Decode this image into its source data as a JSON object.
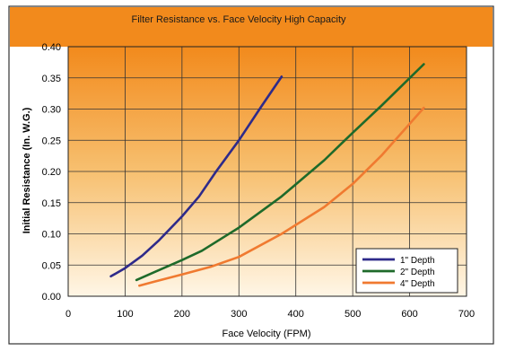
{
  "chart_data": {
    "type": "line",
    "title": "Filter Resistance vs. Face Velocity High Capacity",
    "xlabel": "Face Velocity (FPM)",
    "ylabel": "Initial Resistance (In. W.G.)",
    "xlim": [
      0,
      700
    ],
    "ylim": [
      0,
      0.4
    ],
    "x_ticks": [
      "0",
      "100",
      "200",
      "300",
      "400",
      "500",
      "600",
      "700"
    ],
    "y_ticks": [
      "0.00",
      "0.05",
      "0.10",
      "0.15",
      "0.20",
      "0.25",
      "0.30",
      "0.35",
      "0.40"
    ],
    "grid": true,
    "legend_position": "bottom-right",
    "series": [
      {
        "name": "1\" Depth",
        "color": "#2e2a8a",
        "x": [
          75,
          100,
          130,
          160,
          200,
          230,
          260,
          300,
          340,
          375
        ],
        "y": [
          0.032,
          0.045,
          0.065,
          0.09,
          0.128,
          0.16,
          0.2,
          0.25,
          0.305,
          0.352
        ]
      },
      {
        "name": "2\" Depth",
        "color": "#1e6a2a",
        "x": [
          120,
          150,
          200,
          235,
          300,
          375,
          450,
          500,
          550,
          625
        ],
        "y": [
          0.026,
          0.038,
          0.058,
          0.073,
          0.11,
          0.16,
          0.218,
          0.262,
          0.305,
          0.372
        ]
      },
      {
        "name": "4\" Depth",
        "color": "#f07a30",
        "x": [
          125,
          150,
          200,
          250,
          300,
          375,
          450,
          500,
          550,
          625
        ],
        "y": [
          0.017,
          0.023,
          0.035,
          0.047,
          0.063,
          0.1,
          0.143,
          0.18,
          0.225,
          0.302
        ]
      }
    ]
  }
}
